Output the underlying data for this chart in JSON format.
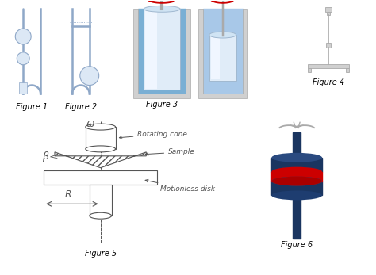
{
  "background_color": "#ffffff",
  "figure_labels": [
    "Figure 1",
    "Figure 2",
    "Figure 3",
    "Figure 4",
    "Figure 5",
    "Figure 6"
  ],
  "label_fontsize": 7,
  "blue_light": "#c5d5e8",
  "blue_mid": "#7a9fc0",
  "blue_pale": "#dce8f5",
  "blue_liquid": "#7aafd4",
  "blue_liquid2": "#a8c8e8",
  "gray_light": "#d0d0d0",
  "gray_mid": "#aaaaaa",
  "gray_dark": "#888888",
  "tube_color": "#8fa8c8",
  "red_color": "#cc0000",
  "annotation_color": "#555555",
  "dark_navy": "#1a3560",
  "navy2": "#2a4a80"
}
